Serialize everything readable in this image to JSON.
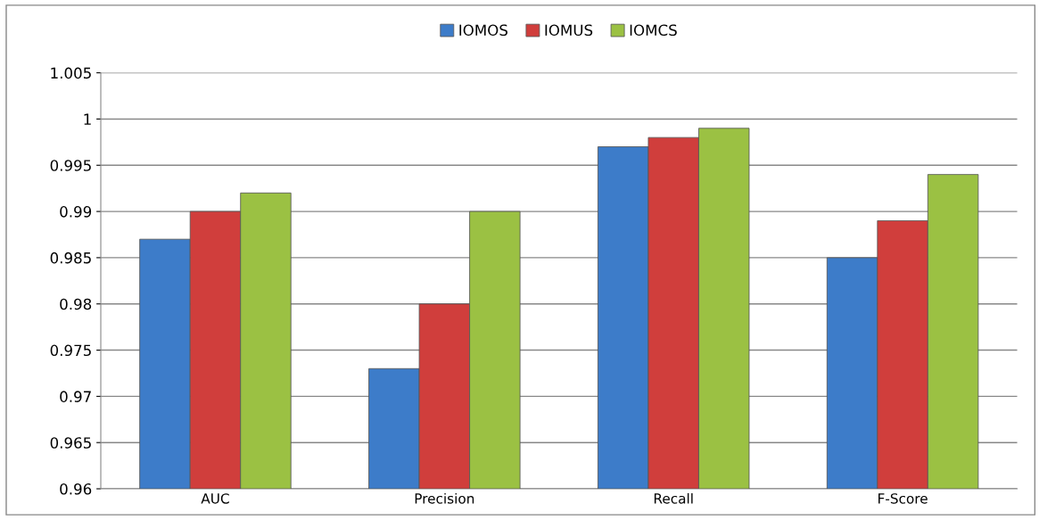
{
  "chart_data": {
    "type": "bar",
    "categories": [
      "AUC",
      "Precision",
      "Recall",
      "F-Score"
    ],
    "series": [
      {
        "name": "IOMOS",
        "color": "#3d7cc9",
        "values": [
          0.987,
          0.973,
          0.997,
          0.985
        ]
      },
      {
        "name": "IOMUS",
        "color": "#d03e3c",
        "values": [
          0.99,
          0.98,
          0.998,
          0.989
        ]
      },
      {
        "name": "IOMCS",
        "color": "#9bc143",
        "values": [
          0.992,
          0.99,
          0.999,
          0.994
        ]
      }
    ],
    "ylim": [
      0.96,
      1.005
    ],
    "yticks": [
      0.96,
      0.965,
      0.97,
      0.975,
      0.98,
      0.985,
      0.99,
      0.995,
      1,
      1.005
    ],
    "grid": "y",
    "legend": "top"
  }
}
